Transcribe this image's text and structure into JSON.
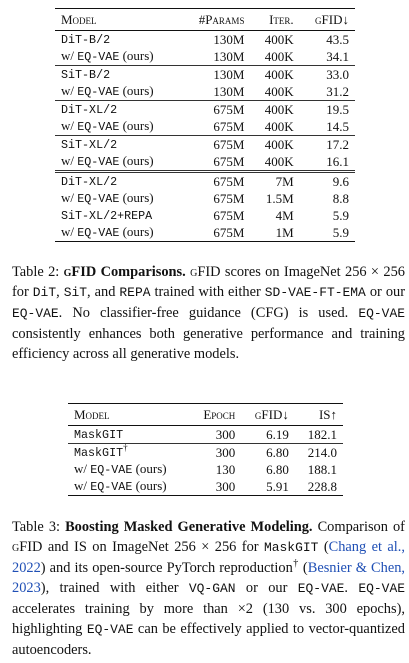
{
  "table1": {
    "header": [
      "Model",
      "#Params",
      "Iter.",
      "gFID↓"
    ],
    "blocks": [
      [
        [
          {
            "model": [
              {
                "t": "DiT-B/2",
                "s": "mono"
              }
            ],
            "params": "130M",
            "iter": "400K",
            "gfid": "43.5"
          },
          {
            "model": [
              {
                "t": "w/ "
              },
              {
                "t": "EQ-VAE",
                "s": "mono"
              },
              {
                "t": " (ours)"
              }
            ],
            "params": "130M",
            "iter": "400K",
            "gfid": "34.1"
          }
        ],
        [
          {
            "model": [
              {
                "t": "SiT-B/2",
                "s": "mono"
              }
            ],
            "params": "130M",
            "iter": "400K",
            "gfid": "33.0"
          },
          {
            "model": [
              {
                "t": "w/ "
              },
              {
                "t": "EQ-VAE",
                "s": "mono"
              },
              {
                "t": " (ours)"
              }
            ],
            "params": "130M",
            "iter": "400K",
            "gfid": "31.2"
          }
        ],
        [
          {
            "model": [
              {
                "t": "DiT-XL/2",
                "s": "mono"
              }
            ],
            "params": "675M",
            "iter": "400K",
            "gfid": "19.5"
          },
          {
            "model": [
              {
                "t": "w/ "
              },
              {
                "t": "EQ-VAE",
                "s": "mono"
              },
              {
                "t": " (ours)"
              }
            ],
            "params": "675M",
            "iter": "400K",
            "gfid": "14.5"
          }
        ],
        [
          {
            "model": [
              {
                "t": "SiT-XL/2",
                "s": "mono"
              }
            ],
            "params": "675M",
            "iter": "400K",
            "gfid": "17.2"
          },
          {
            "model": [
              {
                "t": "w/ "
              },
              {
                "t": "EQ-VAE",
                "s": "mono"
              },
              {
                "t": " (ours)"
              }
            ],
            "params": "675M",
            "iter": "400K",
            "gfid": "16.1"
          }
        ]
      ],
      [
        [
          {
            "model": [
              {
                "t": "DiT-XL/2",
                "s": "mono"
              }
            ],
            "params": "675M",
            "iter": "7M",
            "gfid": "9.6"
          },
          {
            "model": [
              {
                "t": "w/ "
              },
              {
                "t": "EQ-VAE",
                "s": "mono"
              },
              {
                "t": " (ours)"
              }
            ],
            "params": "675M",
            "iter": "1.5M",
            "gfid": "8.8"
          },
          {
            "model": [
              {
                "t": "SiT-XL/2+REPA",
                "s": "mono"
              }
            ],
            "params": "675M",
            "iter": "4M",
            "gfid": "5.9"
          },
          {
            "model": [
              {
                "t": "w/ "
              },
              {
                "t": "EQ-VAE",
                "s": "mono"
              },
              {
                "t": " (ours)"
              }
            ],
            "params": "675M",
            "iter": "1M",
            "gfid": "5.9"
          }
        ]
      ]
    ]
  },
  "caption2": [
    {
      "t": "Table 2: "
    },
    {
      "t": "gFID",
      "s": "bold sc"
    },
    {
      "t": " Comparisons.",
      "s": "bold"
    },
    {
      "t": " "
    },
    {
      "t": "gFID",
      "s": "sc"
    },
    {
      "t": " scores on ImageNet 256 × 256 for "
    },
    {
      "t": "DiT",
      "s": "mono"
    },
    {
      "t": ", "
    },
    {
      "t": "SiT",
      "s": "mono"
    },
    {
      "t": ", and "
    },
    {
      "t": "REPA",
      "s": "mono"
    },
    {
      "t": " trained with either "
    },
    {
      "t": "SD-VAE-FT-EMA",
      "s": "mono"
    },
    {
      "t": " or our "
    },
    {
      "t": "EQ-VAE",
      "s": "mono"
    },
    {
      "t": ". No classifier-free guidance (CFG) is used. "
    },
    {
      "t": "EQ-VAE",
      "s": "mono"
    },
    {
      "t": " consistently enhances both generative performance and training efficiency across all generative models."
    }
  ],
  "table2": {
    "header": [
      "Model",
      "Epoch",
      "gFID↓",
      "IS↑"
    ],
    "blocks": [
      [
        [
          {
            "model": [
              {
                "t": "MaskGIT",
                "s": "mono"
              }
            ],
            "epoch": "300",
            "gfid": "6.19",
            "is": "182.1"
          }
        ],
        [
          {
            "model": [
              {
                "t": "MaskGIT",
                "s": "mono"
              },
              {
                "t": "†",
                "s": "sup"
              }
            ],
            "epoch": "300",
            "gfid": "6.80",
            "is": "214.0"
          },
          {
            "model": [
              {
                "t": "w/ "
              },
              {
                "t": "EQ-VAE",
                "s": "mono"
              },
              {
                "t": " (ours)"
              }
            ],
            "epoch": "130",
            "gfid": "6.80",
            "is": "188.1"
          },
          {
            "model": [
              {
                "t": "w/ "
              },
              {
                "t": "EQ-VAE",
                "s": "mono"
              },
              {
                "t": " (ours)"
              }
            ],
            "epoch": "300",
            "gfid": "5.91",
            "is": "228.8"
          }
        ]
      ]
    ]
  },
  "caption3": [
    {
      "t": "Table 3: "
    },
    {
      "t": "Boosting Masked Generative Modeling.",
      "s": "bold"
    },
    {
      "t": " Comparison of "
    },
    {
      "t": "gFID",
      "s": "sc"
    },
    {
      "t": " and IS on ImageNet 256 × 256 for "
    },
    {
      "t": "MaskGIT",
      "s": "mono"
    },
    {
      "t": " ("
    },
    {
      "t": "Chang et al., 2022",
      "s": "link"
    },
    {
      "t": ") and its open-source PyTorch reproduction"
    },
    {
      "t": "†",
      "s": "sup"
    },
    {
      "t": " ("
    },
    {
      "t": "Besnier & Chen, 2023",
      "s": "link"
    },
    {
      "t": "), trained with either "
    },
    {
      "t": "VQ-GAN",
      "s": "mono"
    },
    {
      "t": " or our "
    },
    {
      "t": "EQ-VAE",
      "s": "mono"
    },
    {
      "t": ". "
    },
    {
      "t": "EQ-VAE",
      "s": "mono"
    },
    {
      "t": " accelerates training by more than ×2 (130 vs. 300 epochs), highlighting "
    },
    {
      "t": "EQ-VAE",
      "s": "mono"
    },
    {
      "t": " can be effectively applied to vector-quantized autoencoders."
    }
  ]
}
